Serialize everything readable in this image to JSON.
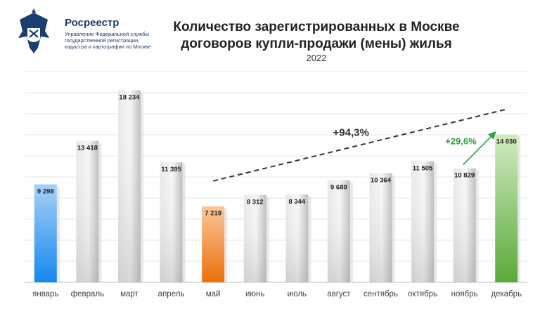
{
  "header": {
    "org_name": "Росреестр",
    "org_sub": [
      "Управление Федеральной службы",
      "государственной регистрации,",
      "кадастра и картографии по Москве"
    ],
    "logo_icon": "rosreestr-emblem-icon"
  },
  "chart_data": {
    "type": "bar",
    "title": "Количество зарегистрированных в Москве договоров купли-продажи (мены) жилья",
    "title_lines": [
      "Количество зарегистрированных в Москве",
      "договоров купли-продажи (мены) жилья"
    ],
    "subtitle": "2022",
    "xlabel": "",
    "ylabel": "",
    "ylim": [
      0,
      20000
    ],
    "grid": true,
    "categories": [
      "январь",
      "февраль",
      "март",
      "апрель",
      "май",
      "июнь",
      "июль",
      "август",
      "сентябрь",
      "октябрь",
      "ноябрь",
      "декабрь"
    ],
    "values": [
      9298,
      13418,
      18234,
      11395,
      7219,
      8312,
      8344,
      9689,
      10364,
      11505,
      10829,
      14030
    ],
    "value_labels": [
      "9 298",
      "13 418",
      "18 234",
      "11 395",
      "7 219",
      "8 312",
      "8 344",
      "9 689",
      "10 364",
      "11 505",
      "10 829",
      "14 030"
    ],
    "highlight": {
      "январь": "#1e90ff",
      "май": "#f07818",
      "декабрь": "#6ab04c"
    },
    "default_color": "#cfcfcf",
    "annotations": [
      {
        "text": "+94,3%",
        "from": "май",
        "to": "декабрь",
        "style": "dashed",
        "color": "#333333"
      },
      {
        "text": "+29,6%",
        "from": "ноябрь",
        "to": "декабрь",
        "style": "arrow",
        "color": "#2e9e3e"
      }
    ]
  }
}
